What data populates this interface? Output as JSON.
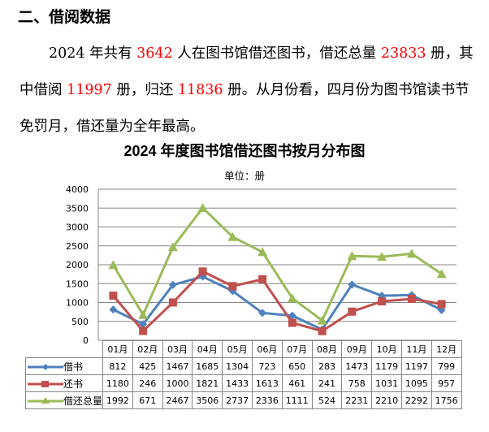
{
  "section": {
    "heading": "二、借阅数据",
    "paragraph": [
      {
        "text": "2024 年共有 ",
        "hl": false
      },
      {
        "text": "3642",
        "hl": true
      },
      {
        "text": " 人在图书馆借还图书，借还总量 ",
        "hl": false
      },
      {
        "text": "23833",
        "hl": true
      },
      {
        "text": " 册，其中借阅 ",
        "hl": false
      },
      {
        "text": "11997",
        "hl": true
      },
      {
        "text": " 册，归还 ",
        "hl": false
      },
      {
        "text": "11836",
        "hl": true
      },
      {
        "text": " 册。从月份看，四月份为图书馆读书节免罚月，借还量为全年最高。",
        "hl": false
      }
    ]
  },
  "colors": {
    "borrow": "#4F81BD",
    "return": "#C0504D",
    "total": "#9BBB59",
    "highlight": "#FF0000",
    "grid": "#868686"
  },
  "chart_data": {
    "type": "line",
    "title": "2024 年度图书馆借还图书按月分布图",
    "subtitle": "单位：册",
    "xlabel": "",
    "ylabel": "",
    "ylim": [
      0,
      4000
    ],
    "yticks": [
      0,
      500,
      1000,
      1500,
      2000,
      2500,
      3000,
      3500,
      4000
    ],
    "grid": true,
    "legend_position": "data-table",
    "categories": [
      "01月",
      "02月",
      "03月",
      "04月",
      "05月",
      "06月",
      "07月",
      "08月",
      "09月",
      "10月",
      "11月",
      "12月"
    ],
    "series": [
      {
        "name": "借书",
        "marker": "diamond",
        "values": [
          812,
          425,
          1467,
          1685,
          1304,
          723,
          650,
          283,
          1473,
          1179,
          1197,
          799
        ]
      },
      {
        "name": "还书",
        "marker": "square",
        "values": [
          1180,
          246,
          1000,
          1821,
          1433,
          1613,
          461,
          241,
          758,
          1031,
          1095,
          957
        ]
      },
      {
        "name": "借还总量",
        "marker": "triangle",
        "values": [
          1992,
          671,
          2467,
          3506,
          2737,
          2336,
          1111,
          524,
          2231,
          2210,
          2292,
          1756
        ]
      }
    ]
  }
}
